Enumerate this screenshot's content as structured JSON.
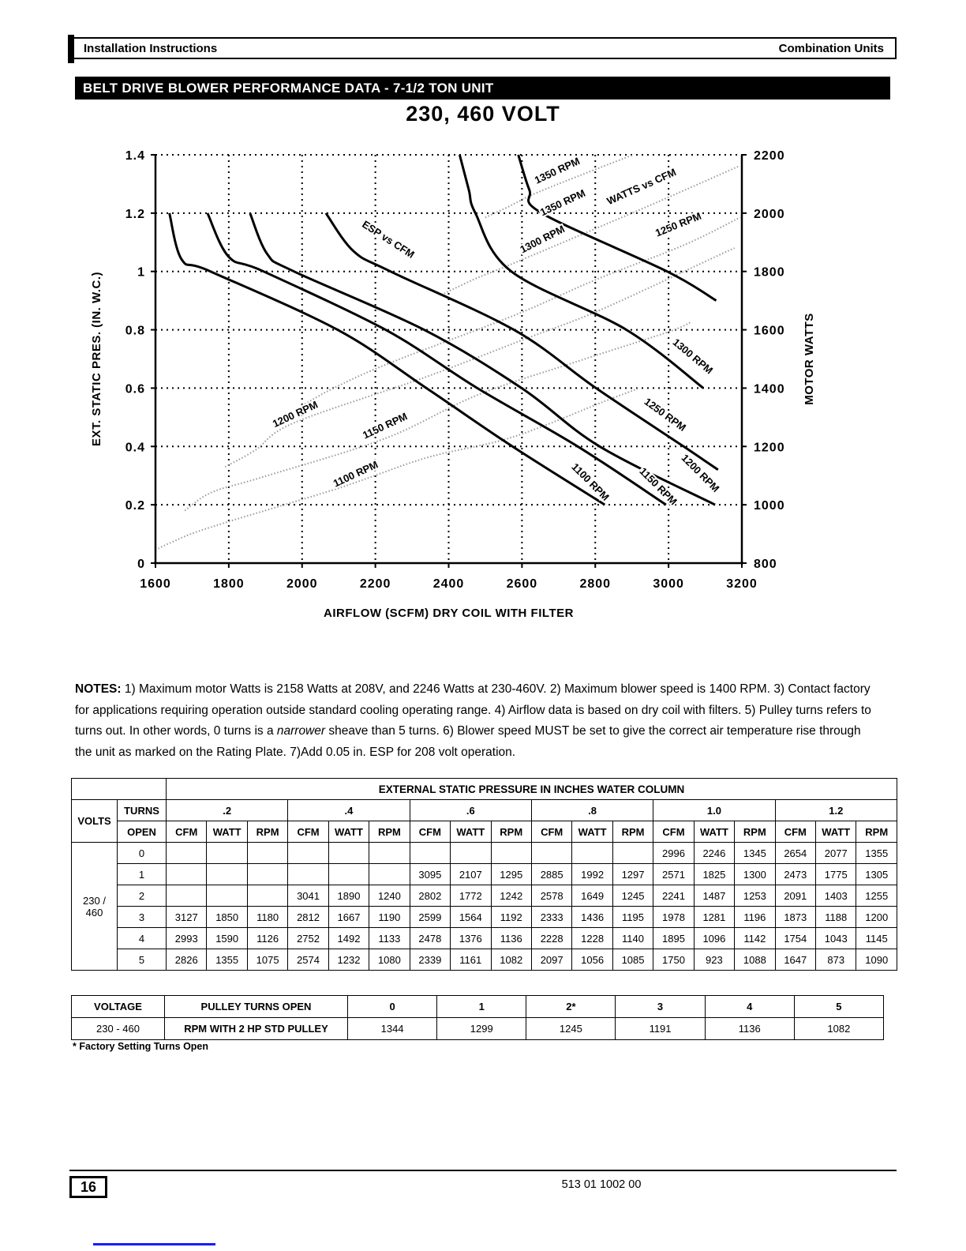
{
  "header": {
    "left": "Installation Instructions",
    "right": "Combination Units"
  },
  "banner": "BELT DRIVE BLOWER PERFORMANCE DATA - 7-1/2 TON UNIT",
  "chart_title": "230, 460 VOLT",
  "chart_data": {
    "type": "line",
    "title": "230, 460 VOLT",
    "xlabel": "AIRFLOW (SCFM) DRY COIL WITH FILTER",
    "ylabel_left": "EXT. STATIC PRES. (IN. W.C.)",
    "ylabel_right": "MOTOR WATTS",
    "xlim": [
      1600,
      3200
    ],
    "ylim_left": [
      0,
      1.4
    ],
    "ylim_right": [
      800,
      2200
    ],
    "xticks": [
      1600,
      1800,
      2000,
      2200,
      2400,
      2600,
      2800,
      3000,
      3200
    ],
    "yticks_left": [
      0,
      0.2,
      0.4,
      0.6,
      0.8,
      1,
      1.2,
      1.4
    ],
    "yticks_right": [
      800,
      1000,
      1200,
      1400,
      1600,
      1800,
      2000,
      2200
    ],
    "grid": "dotted",
    "series_esp": [
      {
        "name": "1100 RPM",
        "points": [
          [
            1638,
            1.2
          ],
          [
            1672,
            1.04
          ],
          [
            1750,
            1.0
          ],
          [
            2097,
            0.8
          ],
          [
            2339,
            0.6
          ],
          [
            2574,
            0.4
          ],
          [
            2826,
            0.2
          ]
        ]
      },
      {
        "name": "1150 RPM",
        "points": [
          [
            1742,
            1.2
          ],
          [
            1800,
            1.05
          ],
          [
            1895,
            1.0
          ],
          [
            2228,
            0.8
          ],
          [
            2478,
            0.6
          ],
          [
            2752,
            0.4
          ],
          [
            2993,
            0.2
          ]
        ]
      },
      {
        "name": "1200 RPM",
        "points": [
          [
            1858,
            1.2
          ],
          [
            1905,
            1.06
          ],
          [
            1978,
            1.0
          ],
          [
            2333,
            0.8
          ],
          [
            2599,
            0.6
          ],
          [
            2812,
            0.4
          ],
          [
            3127,
            0.2
          ]
        ]
      },
      {
        "name": "1250 RPM",
        "points": [
          [
            2065,
            1.2
          ],
          [
            2140,
            1.07
          ],
          [
            2241,
            1.0
          ],
          [
            2578,
            0.8
          ],
          [
            2802,
            0.6
          ],
          [
            3041,
            0.4
          ],
          [
            3135,
            0.32
          ]
        ]
      },
      {
        "name": "1300 RPM",
        "points": [
          [
            2430,
            1.4
          ],
          [
            2455,
            1.28
          ],
          [
            2473,
            1.2
          ],
          [
            2571,
            1.0
          ],
          [
            2885,
            0.8
          ],
          [
            3095,
            0.6
          ]
        ]
      },
      {
        "name": "1350 RPM",
        "points": [
          [
            2590,
            1.4
          ],
          [
            2620,
            1.28
          ],
          [
            2654,
            1.2
          ],
          [
            2996,
            1.0
          ],
          [
            3130,
            0.9
          ]
        ]
      }
    ],
    "series_watts": [
      {
        "name": "1100 RPM",
        "points": [
          [
            1600,
            845
          ],
          [
            1647,
            873
          ],
          [
            1750,
            923
          ],
          [
            2097,
            1056
          ],
          [
            2339,
            1161
          ],
          [
            2574,
            1232
          ],
          [
            2826,
            1355
          ],
          [
            2920,
            1400
          ]
        ]
      },
      {
        "name": "1150 RPM",
        "points": [
          [
            1680,
            980
          ],
          [
            1754,
            1043
          ],
          [
            1895,
            1096
          ],
          [
            2228,
            1228
          ],
          [
            2478,
            1376
          ],
          [
            2752,
            1492
          ],
          [
            2993,
            1590
          ],
          [
            3060,
            1625
          ]
        ]
      },
      {
        "name": "1200 RPM",
        "points": [
          [
            1790,
            1130
          ],
          [
            1873,
            1188
          ],
          [
            1978,
            1281
          ],
          [
            2333,
            1436
          ],
          [
            2599,
            1564
          ],
          [
            2812,
            1667
          ],
          [
            3127,
            1850
          ],
          [
            3180,
            1880
          ]
        ]
      },
      {
        "name": "1250 RPM",
        "points": [
          [
            2000,
            1340
          ],
          [
            2091,
            1403
          ],
          [
            2241,
            1487
          ],
          [
            2578,
            1649
          ],
          [
            2802,
            1772
          ],
          [
            3041,
            1890
          ],
          [
            3195,
            1985
          ]
        ]
      },
      {
        "name": "1300 RPM",
        "points": [
          [
            2380,
            1720
          ],
          [
            2473,
            1775
          ],
          [
            2571,
            1825
          ],
          [
            2885,
            1992
          ],
          [
            3095,
            2107
          ],
          [
            3190,
            2160
          ]
        ]
      },
      {
        "name": "1350 RPM",
        "points": [
          [
            2500,
            1985
          ],
          [
            2560,
            2020
          ],
          [
            2654,
            2077
          ],
          [
            2903,
            2200
          ]
        ]
      }
    ],
    "labels": [
      {
        "text": "1350 RPM",
        "x": 2700,
        "y": 1.335,
        "rot": -25
      },
      {
        "text": "1350 RPM",
        "x": 2715,
        "y": 1.225,
        "rot": -25
      },
      {
        "text": "WATTS vs CFM",
        "x": 2930,
        "y": 1.28,
        "rot": -24
      },
      {
        "text": "1300 RPM",
        "x": 2660,
        "y": 1.1,
        "rot": -27
      },
      {
        "text": "1250 RPM",
        "x": 3030,
        "y": 1.15,
        "rot": -22
      },
      {
        "text": "ESP vs CFM",
        "x": 2230,
        "y": 1.1,
        "rot": 33
      },
      {
        "text": "1300 RPM",
        "x": 3060,
        "y": 0.7,
        "rot": 40
      },
      {
        "text": "1250 RPM",
        "x": 2985,
        "y": 0.5,
        "rot": 36
      },
      {
        "text": "1200 RPM",
        "x": 1985,
        "y": 0.5,
        "rot": -25
      },
      {
        "text": "1150 RPM",
        "x": 2230,
        "y": 0.46,
        "rot": -25
      },
      {
        "text": "1100 RPM",
        "x": 2150,
        "y": 0.295,
        "rot": -25
      },
      {
        "text": "1100 RPM",
        "x": 2780,
        "y": 0.27,
        "rot": 45
      },
      {
        "text": "1150 RPM",
        "x": 2965,
        "y": 0.255,
        "rot": 45
      },
      {
        "text": "1200 RPM",
        "x": 3080,
        "y": 0.3,
        "rot": 45
      }
    ]
  },
  "notes": {
    "label": "NOTES:",
    "part1": " 1) Maximum motor Watts is 2158 Watts at 208V, and 2246 Watts at 230-460V.  2) Maximum blower speed is 1400 RPM.  3) Contact factory for applications requiring operation outside standard cooling operating range.  4) Airflow data is based on dry coil with filters.  5) Pulley turns refers to turns out.  In other words, 0 turns is a ",
    "italic": "narrower",
    "part2": " sheave than 5 turns.  6) Blower speed MUST be set to give the correct air temperature rise through the unit as marked on the Rating Plate. 7)Add 0.05 in. ESP for 208 volt operation."
  },
  "esp_table": {
    "title": "EXTERNAL STATIC PRESSURE IN INCHES WATER COLUMN",
    "volts_header": "VOLTS",
    "turns_header": "TURNS",
    "open_header": "OPEN",
    "pressure_groups": [
      ".2",
      ".4",
      ".6",
      ".8",
      "1.0",
      "1.2"
    ],
    "sub_headers": [
      "CFM",
      "WATT",
      "RPM"
    ],
    "volts_value": "230 / 460",
    "rows": [
      {
        "turns": "0",
        "cells": [
          "",
          "",
          "",
          "",
          "",
          "",
          "",
          "",
          "",
          "",
          "",
          "",
          "2996",
          "2246",
          "1345",
          "2654",
          "2077",
          "1355"
        ]
      },
      {
        "turns": "1",
        "cells": [
          "",
          "",
          "",
          "",
          "",
          "",
          "3095",
          "2107",
          "1295",
          "2885",
          "1992",
          "1297",
          "2571",
          "1825",
          "1300",
          "2473",
          "1775",
          "1305"
        ]
      },
      {
        "turns": "2",
        "cells": [
          "",
          "",
          "",
          "3041",
          "1890",
          "1240",
          "2802",
          "1772",
          "1242",
          "2578",
          "1649",
          "1245",
          "2241",
          "1487",
          "1253",
          "2091",
          "1403",
          "1255"
        ]
      },
      {
        "turns": "3",
        "cells": [
          "3127",
          "1850",
          "1180",
          "2812",
          "1667",
          "1190",
          "2599",
          "1564",
          "1192",
          "2333",
          "1436",
          "1195",
          "1978",
          "1281",
          "1196",
          "1873",
          "1188",
          "1200"
        ]
      },
      {
        "turns": "4",
        "cells": [
          "2993",
          "1590",
          "1126",
          "2752",
          "1492",
          "1133",
          "2478",
          "1376",
          "1136",
          "2228",
          "1228",
          "1140",
          "1895",
          "1096",
          "1142",
          "1754",
          "1043",
          "1145"
        ]
      },
      {
        "turns": "5",
        "cells": [
          "2826",
          "1355",
          "1075",
          "2574",
          "1232",
          "1080",
          "2339",
          "1161",
          "1082",
          "2097",
          "1056",
          "1085",
          "1750",
          "923",
          "1088",
          "1647",
          "873",
          "1090"
        ]
      }
    ]
  },
  "pulley_table": {
    "headers": [
      "VOLTAGE",
      "PULLEY TURNS OPEN",
      "0",
      "1",
      "2*",
      "3",
      "4",
      "5"
    ],
    "row": [
      "230 - 460",
      "RPM WITH 2 HP STD PULLEY",
      "1344",
      "1299",
      "1245",
      "1191",
      "1136",
      "1082"
    ]
  },
  "footnote": "* Factory Setting Turns Open",
  "footer": {
    "page_number": "16",
    "doc_number": "513 01 1002 00"
  }
}
